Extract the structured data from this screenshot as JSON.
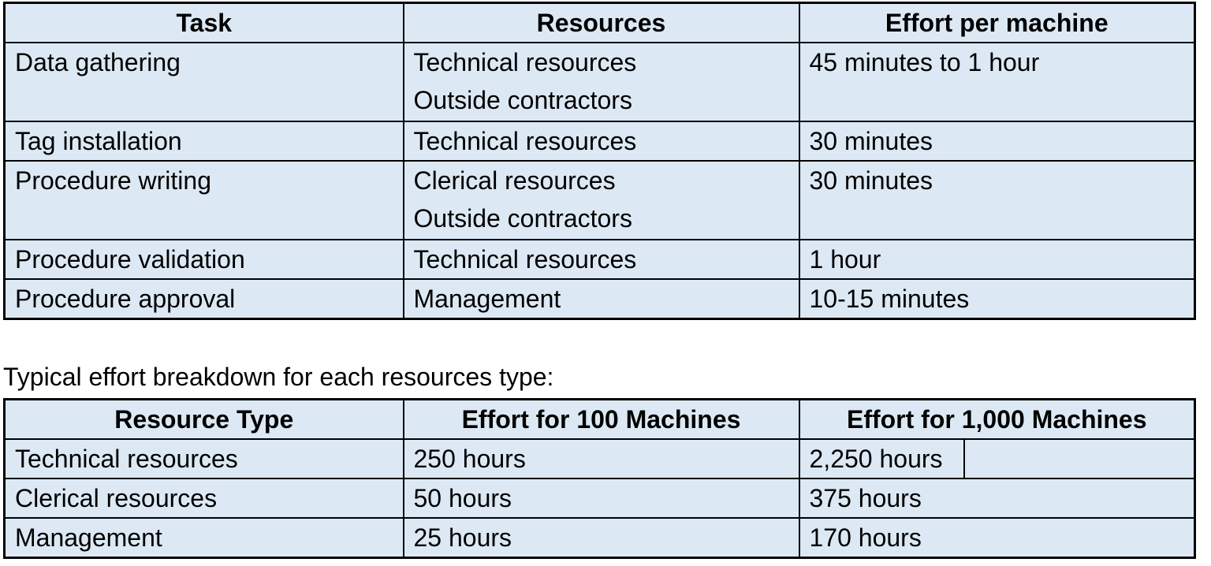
{
  "colors": {
    "cell_background": "#dce9f4",
    "border": "#000000",
    "text": "#000000",
    "page_background": "#ffffff"
  },
  "task_table": {
    "headers": [
      "Task",
      "Resources",
      "Effort per machine"
    ],
    "rows": [
      {
        "task": "Data gathering",
        "resources": [
          "Technical resources",
          "Outside contractors"
        ],
        "effort": "45 minutes to 1 hour"
      },
      {
        "task": "Tag installation",
        "resources": [
          "Technical resources"
        ],
        "effort": "30 minutes"
      },
      {
        "task": "Procedure writing",
        "resources": [
          "Clerical resources",
          "Outside contractors"
        ],
        "effort": "30 minutes"
      },
      {
        "task": "Procedure validation",
        "resources": [
          "Technical resources"
        ],
        "effort": "1 hour"
      },
      {
        "task": "Procedure approval",
        "resources": [
          "Management"
        ],
        "effort": "10-15 minutes"
      }
    ]
  },
  "section_label": "Typical effort breakdown for each resources type:",
  "resource_table": {
    "headers": [
      "Resource Type",
      "Effort for 100 Machines",
      "Effort for 1,000 Machines"
    ],
    "rows": [
      {
        "type": "Technical resources",
        "effort_100": "250 hours",
        "effort_1000": "2,250 hours"
      },
      {
        "type": "Clerical resources",
        "effort_100": "50 hours",
        "effort_1000": "375 hours"
      },
      {
        "type": "Management",
        "effort_100": "25 hours",
        "effort_1000": "170 hours"
      }
    ]
  }
}
